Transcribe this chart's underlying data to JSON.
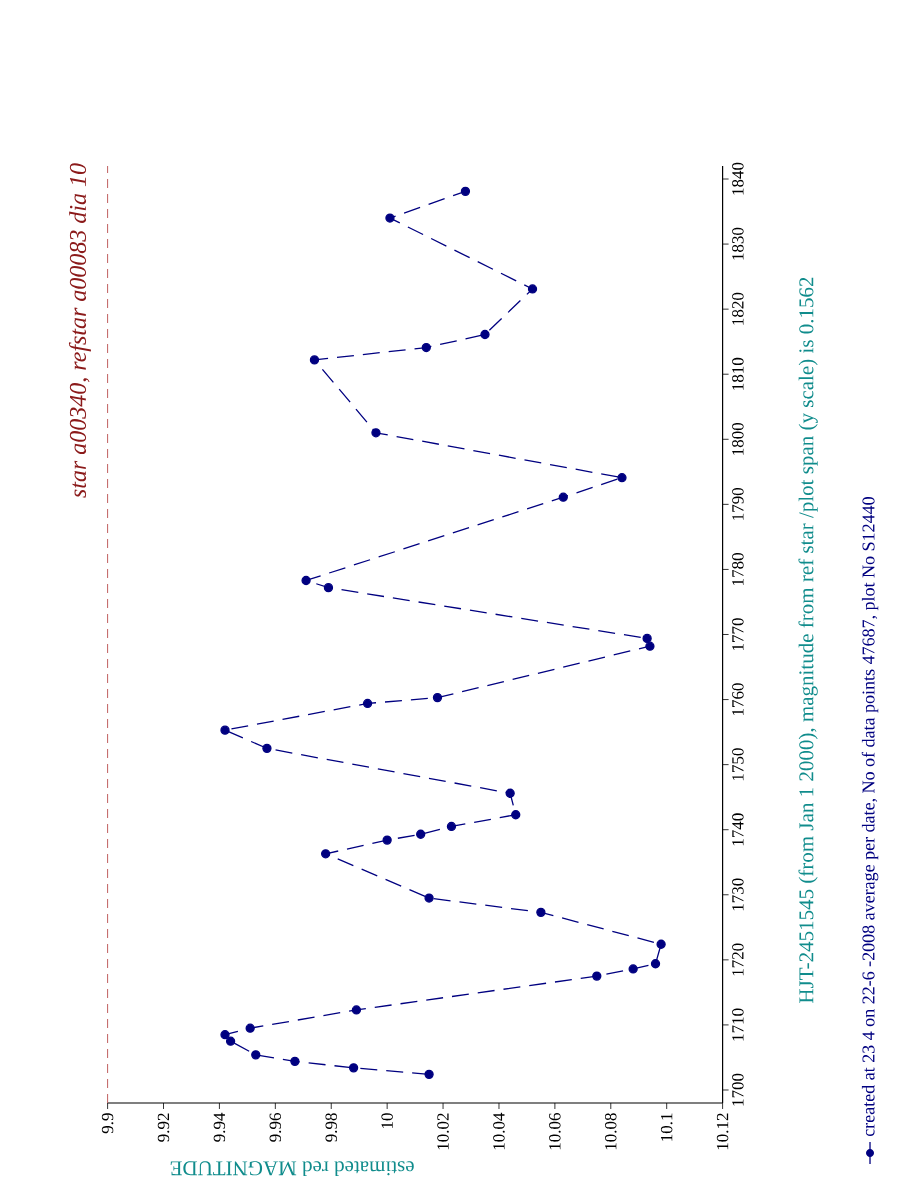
{
  "chart_data": {
    "type": "line",
    "title": "star a00340, refstar a00083  dia  10",
    "xlabel": "estimated red MAGNITUDE",
    "ylabel": "HJT-2451545 (from Jan 1 2000), magnitude from ref star /plot span (y scale) is 0.1562",
    "x": [
      10.015,
      9.988,
      9.967,
      9.953,
      9.944,
      9.942,
      9.951,
      9.989,
      10.075,
      10.088,
      10.096,
      10.098,
      10.055,
      10.015,
      9.978,
      10.0,
      10.012,
      10.023,
      10.046,
      10.044,
      9.957,
      9.942,
      9.993,
      10.018,
      10.094,
      10.093,
      9.979,
      9.971,
      10.063,
      10.084,
      9.996,
      9.974,
      10.014,
      10.035,
      10.052,
      10.001,
      10.028
    ],
    "series": [
      {
        "name": "created at 23 4 on 22-6 -2008 average per date, No of data points 47687,  plot No S12440",
        "color": "#000080",
        "values": [
          1702.4,
          1703.4,
          1704.4,
          1705.4,
          1707.5,
          1708.5,
          1709.5,
          1712.3,
          1717.5,
          1718.6,
          1719.4,
          1722.4,
          1727.3,
          1729.5,
          1736.3,
          1738.4,
          1739.3,
          1740.5,
          1742.3,
          1745.6,
          1752.5,
          1755.3,
          1759.4,
          1760.3,
          1768.2,
          1769.4,
          1777.2,
          1778.3,
          1791.1,
          1794.1,
          1801.0,
          1812.2,
          1814.1,
          1816.1,
          1823.1,
          1834.0,
          1838.1
        ]
      }
    ],
    "xlim": [
      9.9,
      10.12
    ],
    "xticks": [
      9.9,
      9.92,
      9.94,
      9.96,
      9.98,
      10,
      10.02,
      10.04,
      10.06,
      10.08,
      10.1,
      10.12
    ],
    "ylim": [
      1698,
      1842
    ],
    "yticks": [
      1700,
      1710,
      1720,
      1730,
      1740,
      1750,
      1760,
      1770,
      1780,
      1790,
      1800,
      1810,
      1820,
      1830,
      1840
    ],
    "ref_lines": [
      {
        "axis": "x",
        "value": 9.9,
        "color": "#c06060",
        "line_style": "dashed"
      }
    ],
    "marker": "circle",
    "line_style": "dashed",
    "legend": "right"
  }
}
